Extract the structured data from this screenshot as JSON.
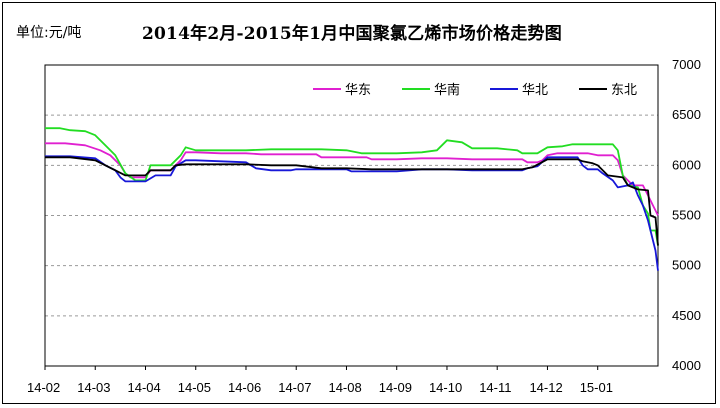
{
  "header": {
    "unit_label": "单位:元/吨",
    "title": "2014年2月-2015年1月中国聚氯乙烯市场价格走势图"
  },
  "chart_data": {
    "type": "line",
    "title": "2014年2月-2015年1月中国聚氯乙烯市场价格走势图",
    "ylabel": "单位:元/吨",
    "xlabel": "",
    "ylim": [
      4000,
      7000
    ],
    "y_ticks": [
      4000,
      4500,
      5000,
      5500,
      6000,
      6500,
      7000
    ],
    "y_axis_side": "right",
    "grid": "horizontal dashed",
    "legend_placement": "top-right",
    "x_range": [
      0,
      12.2
    ],
    "x_ticks": [
      "14-02",
      "14-03",
      "14-04",
      "14-05",
      "14-06",
      "14-07",
      "14-08",
      "14-09",
      "14-10",
      "14-11",
      "14-12",
      "15-01"
    ],
    "series": [
      {
        "name": "华东",
        "color": "#e020d0",
        "points": [
          [
            0,
            6220
          ],
          [
            0.4,
            6220
          ],
          [
            0.8,
            6200
          ],
          [
            1.1,
            6150
          ],
          [
            1.3,
            6100
          ],
          [
            1.5,
            6000
          ],
          [
            1.6,
            5920
          ],
          [
            1.7,
            5880
          ],
          [
            2.0,
            5880
          ],
          [
            2.1,
            5950
          ],
          [
            2.5,
            5950
          ],
          [
            2.7,
            6050
          ],
          [
            2.8,
            6130
          ],
          [
            3.0,
            6130
          ],
          [
            3.5,
            6120
          ],
          [
            4.0,
            6120
          ],
          [
            4.3,
            6110
          ],
          [
            4.5,
            6110
          ],
          [
            5.0,
            6110
          ],
          [
            5.4,
            6110
          ],
          [
            5.5,
            6080
          ],
          [
            5.6,
            6080
          ],
          [
            6.0,
            6080
          ],
          [
            6.4,
            6080
          ],
          [
            6.5,
            6060
          ],
          [
            7.0,
            6060
          ],
          [
            7.5,
            6070
          ],
          [
            8.0,
            6070
          ],
          [
            8.5,
            6060
          ],
          [
            9.0,
            6060
          ],
          [
            9.5,
            6060
          ],
          [
            9.6,
            6030
          ],
          [
            9.8,
            6030
          ],
          [
            9.9,
            6050
          ],
          [
            10.0,
            6100
          ],
          [
            10.2,
            6120
          ],
          [
            10.5,
            6120
          ],
          [
            10.8,
            6120
          ],
          [
            11.0,
            6100
          ],
          [
            11.3,
            6100
          ],
          [
            11.4,
            6050
          ],
          [
            11.5,
            5900
          ],
          [
            11.7,
            5800
          ],
          [
            11.9,
            5800
          ],
          [
            12.0,
            5700
          ],
          [
            12.1,
            5600
          ],
          [
            12.2,
            5500
          ]
        ]
      },
      {
        "name": "华南",
        "color": "#22dd22",
        "points": [
          [
            0,
            6370
          ],
          [
            0.3,
            6370
          ],
          [
            0.5,
            6350
          ],
          [
            0.8,
            6340
          ],
          [
            1.0,
            6300
          ],
          [
            1.2,
            6200
          ],
          [
            1.4,
            6100
          ],
          [
            1.6,
            5920
          ],
          [
            1.8,
            5850
          ],
          [
            2.0,
            5850
          ],
          [
            2.1,
            6000
          ],
          [
            2.5,
            6000
          ],
          [
            2.7,
            6100
          ],
          [
            2.8,
            6180
          ],
          [
            3.0,
            6150
          ],
          [
            3.5,
            6150
          ],
          [
            4.0,
            6150
          ],
          [
            4.5,
            6160
          ],
          [
            5.0,
            6160
          ],
          [
            5.5,
            6160
          ],
          [
            6.0,
            6150
          ],
          [
            6.3,
            6120
          ],
          [
            6.5,
            6120
          ],
          [
            7.0,
            6120
          ],
          [
            7.5,
            6130
          ],
          [
            7.8,
            6150
          ],
          [
            8.0,
            6250
          ],
          [
            8.3,
            6230
          ],
          [
            8.5,
            6170
          ],
          [
            9.0,
            6170
          ],
          [
            9.4,
            6150
          ],
          [
            9.5,
            6120
          ],
          [
            9.8,
            6120
          ],
          [
            10.0,
            6180
          ],
          [
            10.3,
            6190
          ],
          [
            10.5,
            6210
          ],
          [
            11.0,
            6210
          ],
          [
            11.3,
            6210
          ],
          [
            11.4,
            6150
          ],
          [
            11.5,
            5900
          ],
          [
            11.6,
            5800
          ],
          [
            11.8,
            5780
          ],
          [
            11.9,
            5600
          ],
          [
            12.0,
            5520
          ],
          [
            12.05,
            5350
          ],
          [
            12.15,
            5350
          ],
          [
            12.2,
            5200
          ]
        ]
      },
      {
        "name": "华北",
        "color": "#1818d8",
        "points": [
          [
            0,
            6090
          ],
          [
            0.5,
            6090
          ],
          [
            1.0,
            6070
          ],
          [
            1.2,
            6000
          ],
          [
            1.4,
            5950
          ],
          [
            1.5,
            5880
          ],
          [
            1.6,
            5840
          ],
          [
            2.0,
            5840
          ],
          [
            2.2,
            5900
          ],
          [
            2.5,
            5900
          ],
          [
            2.6,
            5990
          ],
          [
            2.8,
            6050
          ],
          [
            3.0,
            6050
          ],
          [
            3.5,
            6040
          ],
          [
            4.0,
            6030
          ],
          [
            4.2,
            5970
          ],
          [
            4.5,
            5950
          ],
          [
            4.9,
            5950
          ],
          [
            5.0,
            5960
          ],
          [
            5.5,
            5960
          ],
          [
            6.0,
            5960
          ],
          [
            6.1,
            5940
          ],
          [
            7.0,
            5940
          ],
          [
            7.5,
            5960
          ],
          [
            8.0,
            5960
          ],
          [
            8.5,
            5950
          ],
          [
            9.0,
            5950
          ],
          [
            9.5,
            5950
          ],
          [
            9.6,
            5970
          ],
          [
            9.8,
            5990
          ],
          [
            10.0,
            6080
          ],
          [
            10.4,
            6080
          ],
          [
            10.6,
            6080
          ],
          [
            10.7,
            6000
          ],
          [
            10.8,
            5960
          ],
          [
            11.0,
            5960
          ],
          [
            11.1,
            5920
          ],
          [
            11.3,
            5850
          ],
          [
            11.4,
            5780
          ],
          [
            11.6,
            5800
          ],
          [
            11.7,
            5830
          ],
          [
            11.8,
            5700
          ],
          [
            11.9,
            5600
          ],
          [
            12.0,
            5450
          ],
          [
            12.1,
            5250
          ],
          [
            12.15,
            5150
          ],
          [
            12.2,
            4950
          ]
        ]
      },
      {
        "name": "东北",
        "color": "#000000",
        "points": [
          [
            0,
            6080
          ],
          [
            0.5,
            6080
          ],
          [
            1.0,
            6050
          ],
          [
            1.2,
            6000
          ],
          [
            1.4,
            5950
          ],
          [
            1.6,
            5900
          ],
          [
            1.8,
            5900
          ],
          [
            2.0,
            5900
          ],
          [
            2.1,
            5950
          ],
          [
            2.5,
            5950
          ],
          [
            2.6,
            6000
          ],
          [
            2.8,
            6010
          ],
          [
            3.0,
            6010
          ],
          [
            4.0,
            6010
          ],
          [
            4.5,
            6000
          ],
          [
            5.0,
            6000
          ],
          [
            5.5,
            5970
          ],
          [
            6.0,
            5970
          ],
          [
            6.5,
            5960
          ],
          [
            7.0,
            5960
          ],
          [
            7.5,
            5960
          ],
          [
            8.0,
            5960
          ],
          [
            8.5,
            5960
          ],
          [
            9.0,
            5960
          ],
          [
            9.5,
            5960
          ],
          [
            9.7,
            5980
          ],
          [
            10.0,
            6060
          ],
          [
            10.5,
            6060
          ],
          [
            10.6,
            6060
          ],
          [
            10.7,
            6040
          ],
          [
            10.9,
            6020
          ],
          [
            11.0,
            6000
          ],
          [
            11.1,
            5950
          ],
          [
            11.2,
            5900
          ],
          [
            11.5,
            5880
          ],
          [
            11.6,
            5800
          ],
          [
            11.8,
            5760
          ],
          [
            12.0,
            5750
          ],
          [
            12.05,
            5500
          ],
          [
            12.15,
            5480
          ],
          [
            12.2,
            5200
          ]
        ]
      }
    ]
  }
}
